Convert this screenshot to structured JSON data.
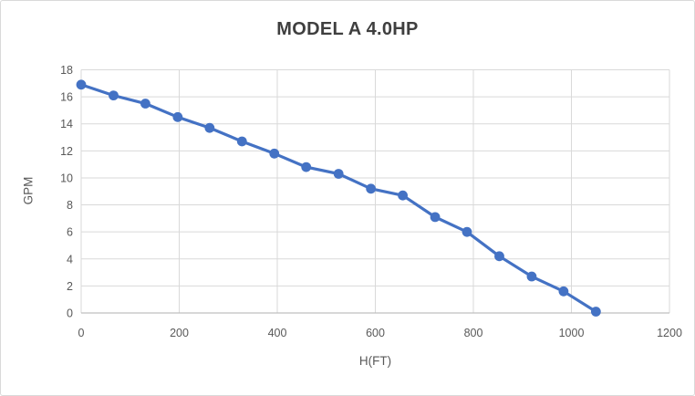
{
  "window": {
    "background": "#ffffff",
    "border_color": "#d9d9d9"
  },
  "chart_data": {
    "type": "line",
    "title": "MODEL A 4.0HP",
    "xlabel": "H(FT)",
    "ylabel": "GPM",
    "x": [
      0,
      66,
      131,
      197,
      262,
      328,
      394,
      459,
      525,
      591,
      656,
      722,
      787,
      853,
      919,
      984,
      1050
    ],
    "series": [
      {
        "name": "GPM",
        "values": [
          16.9,
          16.1,
          15.5,
          14.5,
          13.7,
          12.7,
          11.8,
          10.8,
          10.3,
          9.2,
          8.7,
          7.1,
          6.0,
          4.2,
          2.7,
          1.6,
          0.1
        ]
      }
    ],
    "xlim": [
      0,
      1200
    ],
    "ylim": [
      0,
      18
    ],
    "xticks": [
      0,
      200,
      400,
      600,
      800,
      1000,
      1200
    ],
    "yticks": [
      0,
      2,
      4,
      6,
      8,
      10,
      12,
      14,
      16,
      18
    ],
    "grid": true,
    "legend": false,
    "marker": "circle",
    "colors": {
      "series": "#4472c4",
      "gridline": "#d9d9d9",
      "axis_line": "#bfbfbf",
      "tick_label": "#595959",
      "title": "#3f3f3f"
    }
  }
}
